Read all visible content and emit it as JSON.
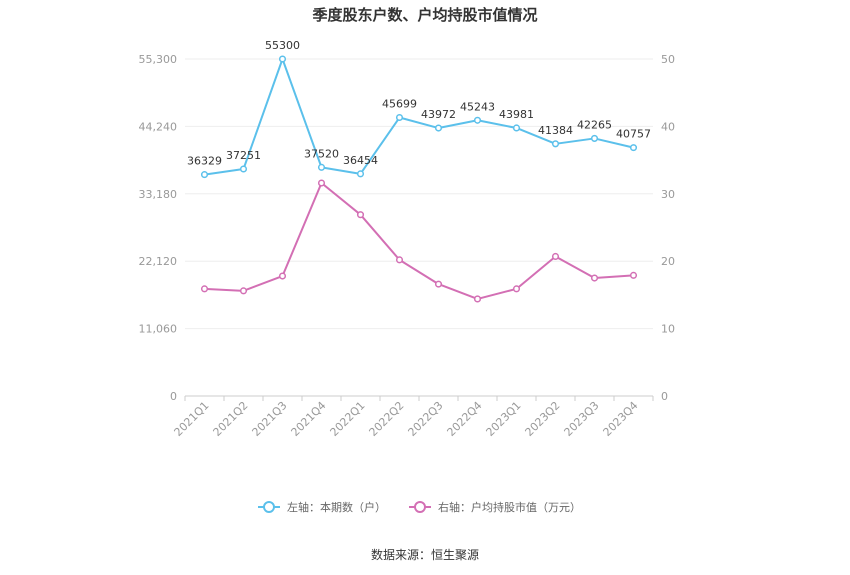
{
  "chart_data": {
    "type": "line",
    "title": "季度股东户数、户均持股市值情况",
    "categories": [
      "2021Q1",
      "2021Q2",
      "2021Q3",
      "2021Q4",
      "2022Q1",
      "2022Q2",
      "2022Q3",
      "2022Q4",
      "2023Q1",
      "2023Q2",
      "2023Q3",
      "2023Q4"
    ],
    "y_left": {
      "min": 0,
      "max": 55300,
      "ticks": [
        "0",
        "11,060",
        "22,120",
        "33,180",
        "44,240",
        "55,300"
      ],
      "tick_values": [
        0,
        11060,
        22120,
        33180,
        44240,
        55300
      ]
    },
    "y_right": {
      "min": 0,
      "max": 50,
      "ticks": [
        "0",
        "10",
        "20",
        "30",
        "40",
        "50"
      ],
      "tick_values": [
        0,
        10,
        20,
        30,
        40,
        50
      ]
    },
    "series": [
      {
        "name": "左轴：本期数（户）",
        "axis": "left",
        "color": "#5bc0eb",
        "values": [
          36329,
          37251,
          55300,
          37520,
          36454,
          45699,
          43972,
          45243,
          43981,
          41384,
          42265,
          40757
        ],
        "labels": [
          "36329",
          "37251",
          "55300",
          "37520",
          "36454",
          "45699",
          "43972",
          "45243",
          "43981",
          "41384",
          "42265",
          "40757"
        ]
      },
      {
        "name": "右轴：户均持股市值（万元）",
        "axis": "right",
        "color": "#d36fb4",
        "values": [
          15.9,
          15.6,
          17.8,
          31.6,
          26.9,
          20.2,
          16.6,
          14.4,
          15.9,
          20.7,
          17.5,
          17.9
        ]
      }
    ],
    "grid": true,
    "legend_position": "bottom"
  },
  "source_text": "数据来源：恒生聚源"
}
